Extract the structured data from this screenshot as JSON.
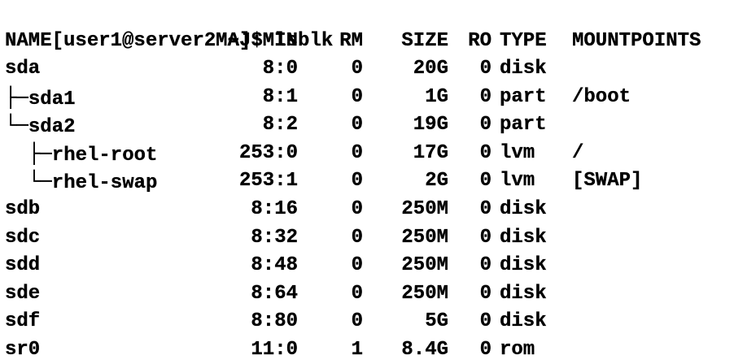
{
  "prompt": "[user1@server2 ~]$ lsblk",
  "headers": {
    "name": "NAME",
    "majmin": "MAJ:MIN",
    "rm": "RM",
    "size": "SIZE",
    "ro": "RO",
    "type": "TYPE",
    "mountpoints": "MOUNTPOINTS"
  },
  "rows": [
    {
      "tree": "",
      "name": "sda",
      "majmin": "8:0",
      "rm": "0",
      "size": "20G",
      "ro": "0",
      "type": "disk",
      "mount": ""
    },
    {
      "tree": "├─",
      "name": "sda1",
      "majmin": "8:1",
      "rm": "0",
      "size": "1G",
      "ro": "0",
      "type": "part",
      "mount": "/boot"
    },
    {
      "tree": "└─",
      "name": "sda2",
      "majmin": "8:2",
      "rm": "0",
      "size": "19G",
      "ro": "0",
      "type": "part",
      "mount": ""
    },
    {
      "tree": "  ├─",
      "name": "rhel-root",
      "majmin": "253:0",
      "rm": "0",
      "size": "17G",
      "ro": "0",
      "type": "lvm",
      "mount": "/"
    },
    {
      "tree": "  └─",
      "name": "rhel-swap",
      "majmin": "253:1",
      "rm": "0",
      "size": "2G",
      "ro": "0",
      "type": "lvm",
      "mount": "[SWAP]"
    },
    {
      "tree": "",
      "name": "sdb",
      "majmin": "8:16",
      "rm": "0",
      "size": "250M",
      "ro": "0",
      "type": "disk",
      "mount": ""
    },
    {
      "tree": "",
      "name": "sdc",
      "majmin": "8:32",
      "rm": "0",
      "size": "250M",
      "ro": "0",
      "type": "disk",
      "mount": ""
    },
    {
      "tree": "",
      "name": "sdd",
      "majmin": "8:48",
      "rm": "0",
      "size": "250M",
      "ro": "0",
      "type": "disk",
      "mount": ""
    },
    {
      "tree": "",
      "name": "sde",
      "majmin": "8:64",
      "rm": "0",
      "size": "250M",
      "ro": "0",
      "type": "disk",
      "mount": ""
    },
    {
      "tree": "",
      "name": "sdf",
      "majmin": "8:80",
      "rm": "0",
      "size": "5G",
      "ro": "0",
      "type": "disk",
      "mount": ""
    },
    {
      "tree": "",
      "name": "sr0",
      "majmin": "11:0",
      "rm": "1",
      "size": "8.4G",
      "ro": "0",
      "type": "rom",
      "mount": ""
    }
  ]
}
